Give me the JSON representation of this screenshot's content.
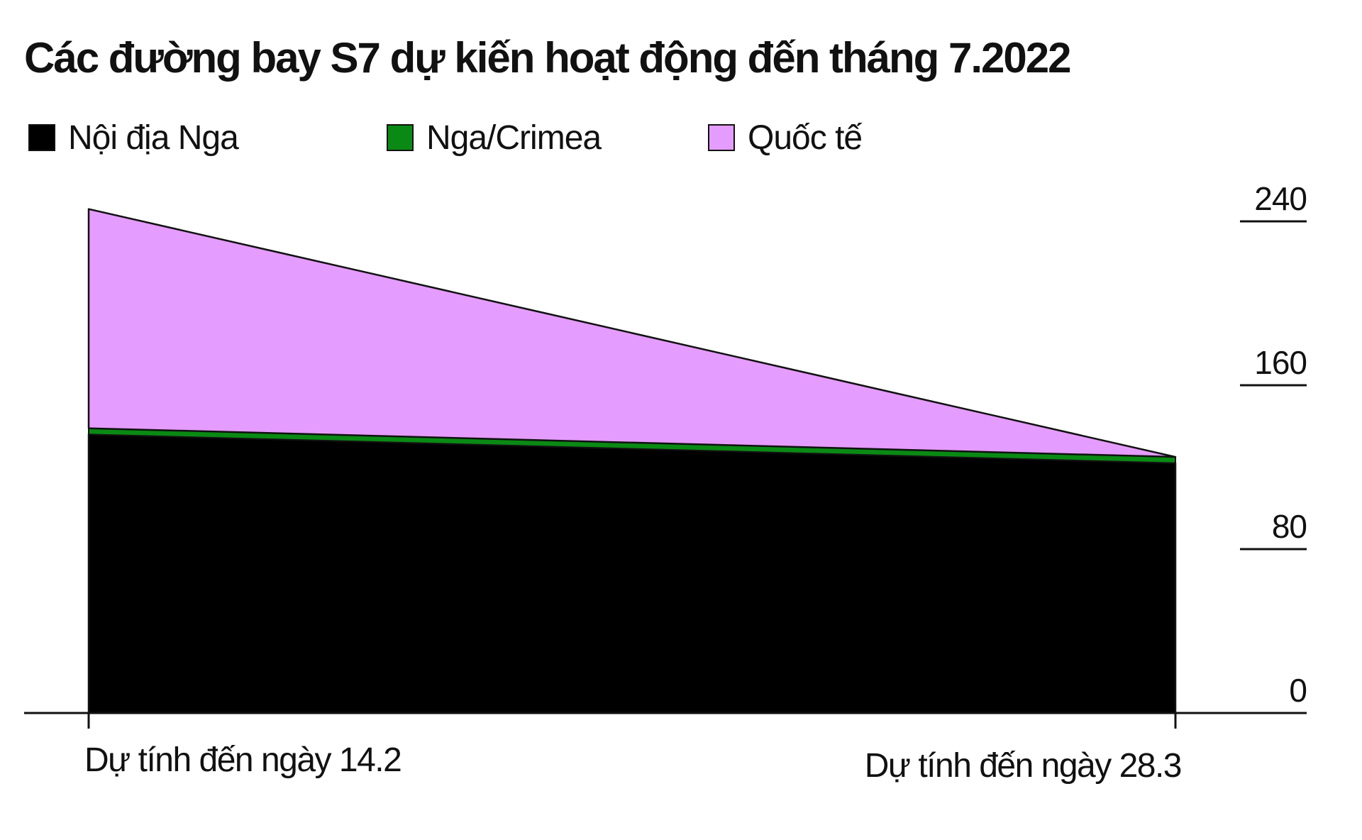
{
  "chart_data": {
    "type": "area",
    "stacked": true,
    "title": "Các đường bay S7 dự kiến hoạt động đến tháng 7.2022",
    "categories": [
      "Dự tính đến ngày 14.2",
      "Dự tính đến ngày 28.3"
    ],
    "series": [
      {
        "name": "Nội địa Nga",
        "values": [
          136,
          122
        ],
        "color": "#000000"
      },
      {
        "name": "Nga/Crimea",
        "values": [
          3,
          3
        ],
        "color": "#0a8a14"
      },
      {
        "name": "Quốc tế",
        "values": [
          107,
          0
        ],
        "color": "#e59cff"
      }
    ],
    "ylim": [
      0,
      240
    ],
    "yticks": [
      0,
      80,
      160,
      240
    ],
    "y_axis_position": "right",
    "legend_position": "top-left",
    "xlabel": "",
    "ylabel": ""
  }
}
